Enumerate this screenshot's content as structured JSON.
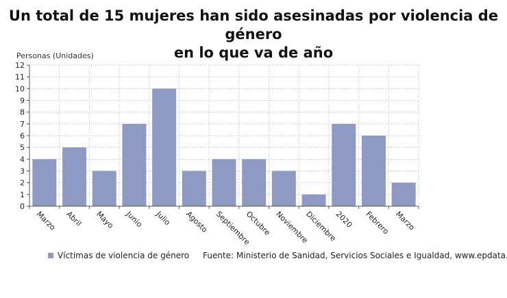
{
  "title_lines": [
    "Un total de 15 mujeres han sido asesinadas por violencia de género",
    "en lo que va de año"
  ],
  "source": "Fuente: Ministerio de Sanidad, Servicios Sociales e Igualdad, www.epdata.es",
  "colors": {
    "bar": "#8e99c4",
    "grid": "#b5b5b5",
    "axis": "#555555"
  },
  "chart_data": {
    "type": "bar",
    "title": "Un total de 15 mujeres han sido asesinadas por violencia de género en lo que va de año",
    "ylabel": "Personas (Unidades)",
    "xlabel": "",
    "ylim": [
      0,
      12
    ],
    "yticks": [
      0,
      1,
      2,
      3,
      4,
      5,
      6,
      7,
      8,
      9,
      10,
      11,
      12
    ],
    "grid": true,
    "legend_position": "bottom-left",
    "categories": [
      "Marzo",
      "Abril",
      "Mayo",
      "Junio",
      "Julio",
      "Agosto",
      "Septiembre",
      "Octubre",
      "Noviembre",
      "Diciembre",
      "2020",
      "Febrero",
      "Marzo"
    ],
    "series": [
      {
        "name": "Víctimas de violencia de género",
        "values": [
          4,
          5,
          3,
          7,
          10,
          3,
          4,
          4,
          3,
          1,
          7,
          6,
          2
        ]
      }
    ]
  }
}
